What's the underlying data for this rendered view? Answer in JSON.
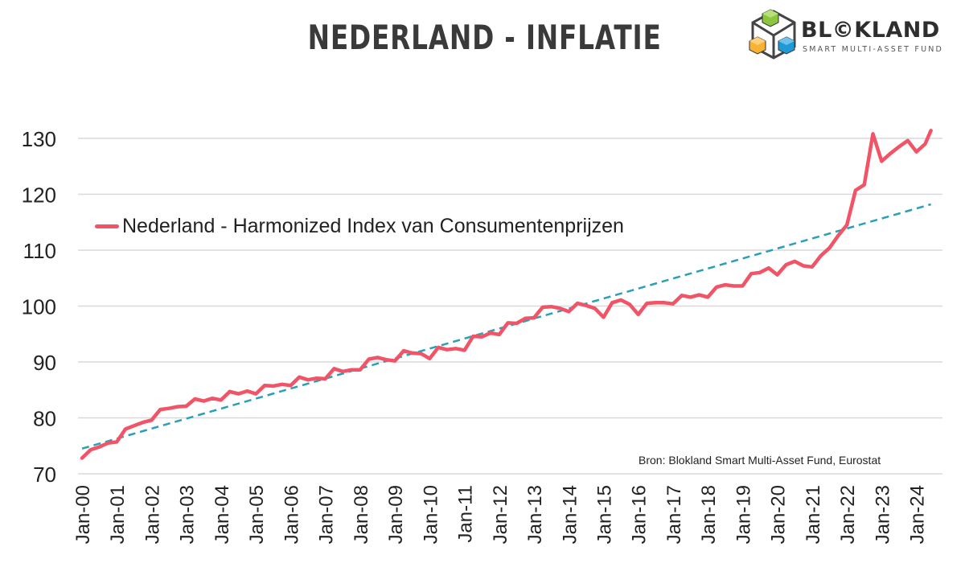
{
  "title": "NEDERLAND - INFLATIE",
  "logo": {
    "name": "BL©KLAND",
    "subtitle": "SMART MULTI-ASSET FUND",
    "colors": [
      "#8cc63f",
      "#f9b233",
      "#1e9bd7",
      "#444444"
    ]
  },
  "source": "Bron: Blokland Smart Multi-Asset Fund, Eurostat",
  "colors": {
    "series": "#f25467",
    "trend": "#2a9fb8",
    "grid": "#d9d9d9",
    "text": "#222222"
  },
  "chart_data": {
    "type": "line",
    "title": "NEDERLAND - INFLATIE",
    "xlabel": "",
    "ylabel": "",
    "ylim": [
      70,
      130
    ],
    "yticks": [
      70,
      80,
      90,
      100,
      110,
      120,
      130
    ],
    "xticks": [
      "Jan-00",
      "Jan-01",
      "Jan-02",
      "Jan-03",
      "Jan-04",
      "Jan-05",
      "Jan-06",
      "Jan-07",
      "Jan-08",
      "Jan-09",
      "Jan-10",
      "Jan-11",
      "Jan-12",
      "Jan-13",
      "Jan-14",
      "Jan-15",
      "Jan-16",
      "Jan-17",
      "Jan-18",
      "Jan-19",
      "Jan-20",
      "Jan-21",
      "Jan-22",
      "Jan-23",
      "Jan-24"
    ],
    "legend_position": "upper-left",
    "grid": "horizontal",
    "series": [
      {
        "name": "Nederland - Harmonized Index van Consumentenprijzen",
        "x": [
          "2000-01",
          "2000-04",
          "2000-07",
          "2000-10",
          "2001-01",
          "2001-04",
          "2001-07",
          "2001-10",
          "2002-01",
          "2002-04",
          "2002-07",
          "2002-10",
          "2003-01",
          "2003-04",
          "2003-07",
          "2003-10",
          "2004-01",
          "2004-04",
          "2004-07",
          "2004-10",
          "2005-01",
          "2005-04",
          "2005-07",
          "2005-10",
          "2006-01",
          "2006-04",
          "2006-07",
          "2006-10",
          "2007-01",
          "2007-04",
          "2007-07",
          "2007-10",
          "2008-01",
          "2008-04",
          "2008-07",
          "2008-10",
          "2009-01",
          "2009-04",
          "2009-07",
          "2009-10",
          "2010-01",
          "2010-04",
          "2010-07",
          "2010-10",
          "2011-01",
          "2011-04",
          "2011-07",
          "2011-10",
          "2012-01",
          "2012-04",
          "2012-07",
          "2012-10",
          "2013-01",
          "2013-04",
          "2013-07",
          "2013-10",
          "2014-01",
          "2014-04",
          "2014-07",
          "2014-10",
          "2015-01",
          "2015-04",
          "2015-07",
          "2015-10",
          "2016-01",
          "2016-04",
          "2016-07",
          "2016-10",
          "2017-01",
          "2017-04",
          "2017-07",
          "2017-10",
          "2018-01",
          "2018-04",
          "2018-07",
          "2018-10",
          "2019-01",
          "2019-04",
          "2019-07",
          "2019-10",
          "2020-01",
          "2020-04",
          "2020-07",
          "2020-10",
          "2021-01",
          "2021-04",
          "2021-07",
          "2021-10",
          "2022-01",
          "2022-04",
          "2022-07",
          "2022-10",
          "2023-01",
          "2023-04",
          "2023-07",
          "2023-10",
          "2024-01",
          "2024-04",
          "2024-06"
        ],
        "y": [
          72.8,
          74.3,
          74.8,
          75.5,
          75.7,
          78.0,
          78.6,
          79.2,
          79.6,
          81.5,
          81.7,
          82.0,
          82.1,
          83.4,
          83.0,
          83.5,
          83.2,
          84.7,
          84.3,
          84.8,
          84.3,
          85.8,
          85.7,
          86.0,
          85.8,
          87.3,
          86.8,
          87.1,
          87.0,
          88.8,
          88.3,
          88.6,
          88.6,
          90.5,
          90.8,
          90.4,
          90.2,
          92.0,
          91.6,
          91.5,
          90.6,
          92.6,
          92.2,
          92.4,
          92.1,
          94.6,
          94.5,
          95.2,
          94.9,
          97.0,
          96.9,
          97.8,
          97.9,
          99.8,
          99.9,
          99.6,
          99.0,
          100.5,
          100.1,
          99.6,
          98.0,
          100.6,
          101.1,
          100.3,
          98.5,
          100.5,
          100.6,
          100.6,
          100.4,
          101.9,
          101.6,
          102.0,
          101.6,
          103.4,
          103.8,
          103.6,
          103.6,
          105.8,
          106.0,
          106.8,
          105.6,
          107.4,
          108.0,
          107.2,
          107.0,
          109.0,
          110.4,
          112.6,
          114.5,
          120.7,
          121.7,
          130.8,
          125.9,
          127.3,
          128.5,
          129.6,
          127.6,
          129.0,
          131.4
        ]
      },
      {
        "name": "",
        "style": "dashed",
        "x": [
          "2000-01",
          "2024-06"
        ],
        "y": [
          74.5,
          118.2
        ]
      }
    ]
  }
}
